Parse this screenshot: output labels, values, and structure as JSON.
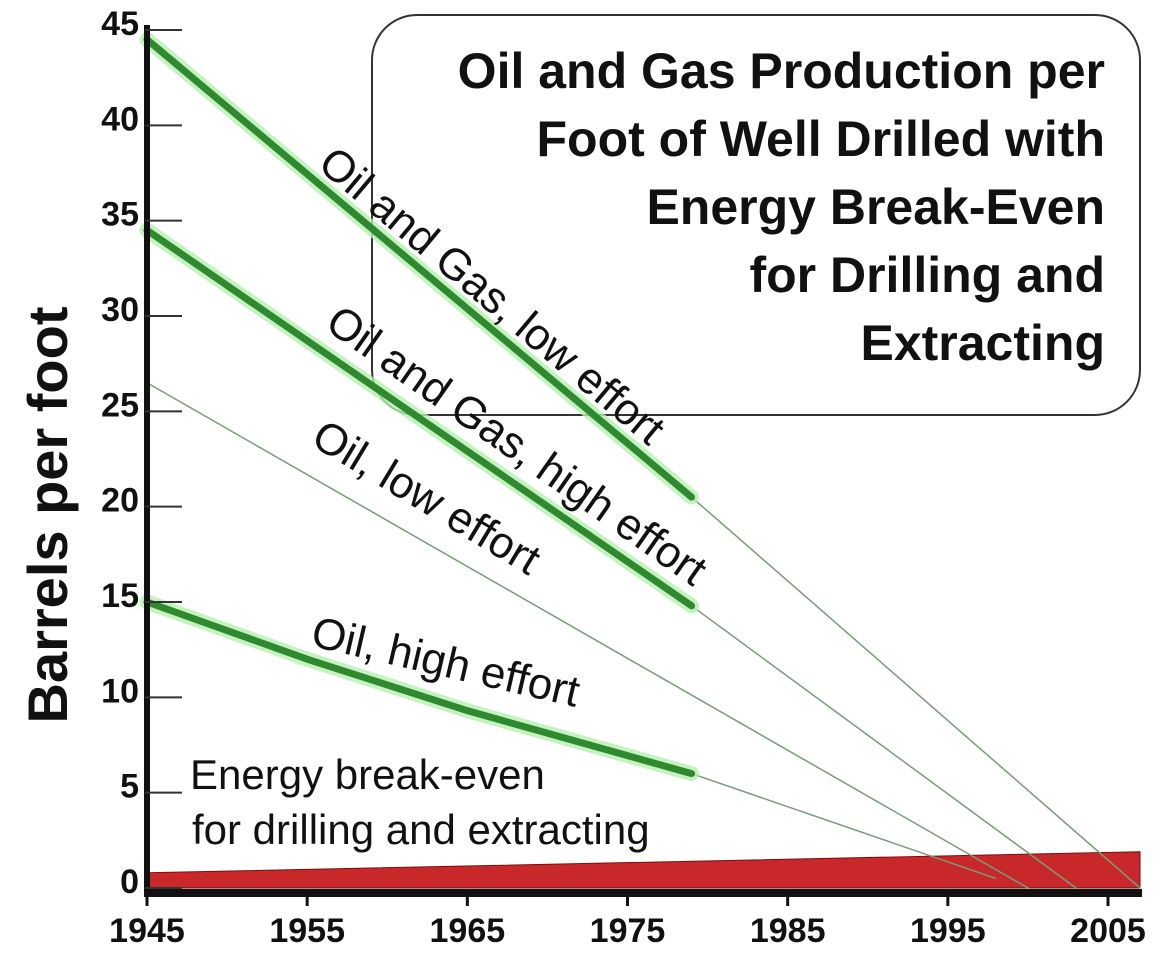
{
  "chart_data": {
    "type": "line",
    "title": [
      "Oil and Gas Production per",
      "Foot of Well Drilled with",
      "Energy Break-Even",
      "for Drilling and",
      "Extracting"
    ],
    "y_label": "Barrels per foot",
    "xlim": [
      1945,
      2007
    ],
    "ylim": [
      0,
      45
    ],
    "xticks": [
      1945,
      1955,
      1965,
      1975,
      1985,
      1995,
      2005
    ],
    "yticks": [
      0,
      5,
      10,
      15,
      20,
      25,
      30,
      35,
      40,
      45
    ],
    "series": [
      {
        "name": "Oil and Gas, low effort",
        "color": "#2f8a2f",
        "line_width": 7,
        "x": [
          1945,
          1979
        ],
        "values": [
          44.5,
          20.5
        ],
        "extrapolation": {
          "x": [
            1979,
            2007
          ],
          "values": [
            20.5,
            0
          ]
        }
      },
      {
        "name": "Oil and Gas, high effort",
        "color": "#2f8a2f",
        "line_width": 7,
        "x": [
          1945,
          1979
        ],
        "values": [
          34.5,
          14.8
        ],
        "extrapolation": {
          "x": [
            1979,
            2003
          ],
          "values": [
            14.8,
            0
          ]
        }
      },
      {
        "name": "Oil, low effort",
        "color": "#7a9a7a",
        "line_width": 1.5,
        "x": [
          1945,
          2000
        ],
        "values": [
          26.5,
          0
        ]
      },
      {
        "name": "Oil, high effort",
        "color": "#2f8a2f",
        "line_width": 7,
        "x": [
          1945,
          1955,
          1965,
          1979
        ],
        "values": [
          15,
          12,
          9.3,
          6
        ],
        "extrapolation": {
          "x": [
            1979,
            1998
          ],
          "values": [
            6,
            0.5
          ]
        }
      }
    ],
    "break_even": {
      "name": [
        "Energy break-even",
        "for drilling and extracting"
      ],
      "color": "#c8282a",
      "x": [
        1945,
        2007
      ],
      "values": [
        0.8,
        1.9
      ]
    }
  }
}
